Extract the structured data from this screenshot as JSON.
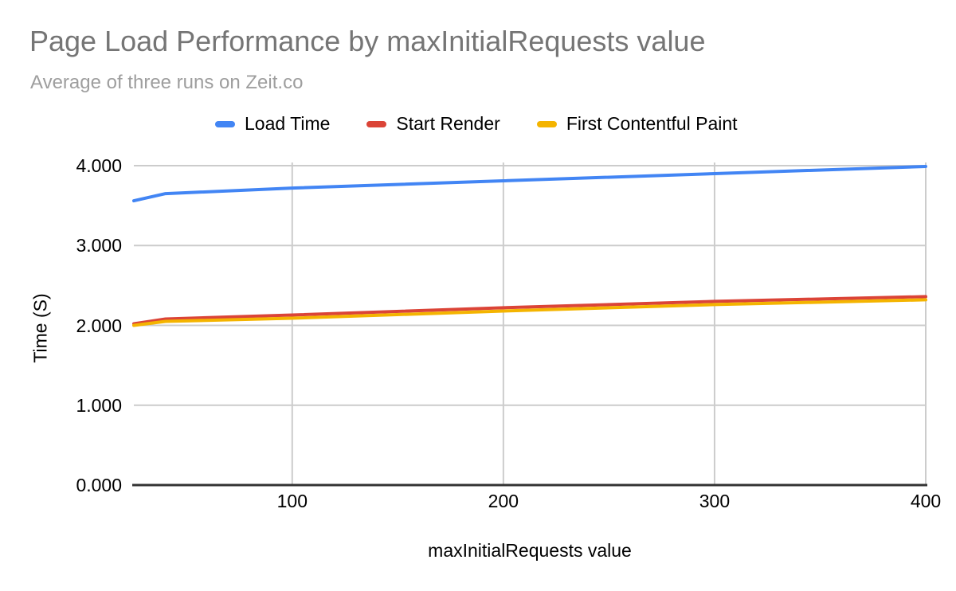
{
  "header": {
    "title": "Page Load Performance by maxInitialRequests value",
    "subtitle": "Average of three runs on Zeit.co",
    "title_color": "#757575",
    "subtitle_color": "#9e9e9e"
  },
  "chart_data": {
    "type": "line",
    "title": "Page Load Performance by maxInitialRequests value",
    "subtitle": "Average of three runs on Zeit.co",
    "xlabel": "maxInitialRequests value",
    "ylabel": "Time (S)",
    "x": [
      25,
      40,
      100,
      200,
      300,
      400
    ],
    "series": [
      {
        "name": "Load Time",
        "color": "#4285f4",
        "values": [
          3.56,
          3.65,
          3.72,
          3.81,
          3.9,
          3.99
        ]
      },
      {
        "name": "Start Render",
        "color": "#db4437",
        "values": [
          2.02,
          2.08,
          2.13,
          2.22,
          2.3,
          2.36
        ]
      },
      {
        "name": "First Contentful Paint",
        "color": "#f4b400",
        "values": [
          2.0,
          2.05,
          2.09,
          2.18,
          2.26,
          2.32
        ]
      }
    ],
    "xlim": [
      25,
      400
    ],
    "ylim": [
      0,
      4
    ],
    "xticks": [
      100,
      200,
      300,
      400
    ],
    "xtick_labels": [
      "100",
      "200",
      "300",
      "400"
    ],
    "yticks": [
      0,
      1,
      2,
      3,
      4
    ],
    "ytick_labels": [
      "0.000",
      "1.000",
      "2.000",
      "3.000",
      "4.000"
    ],
    "grid": true,
    "legend_position": "top",
    "gridline_color": "#cccccc",
    "axis_color": "#333333",
    "line_width": 4
  }
}
